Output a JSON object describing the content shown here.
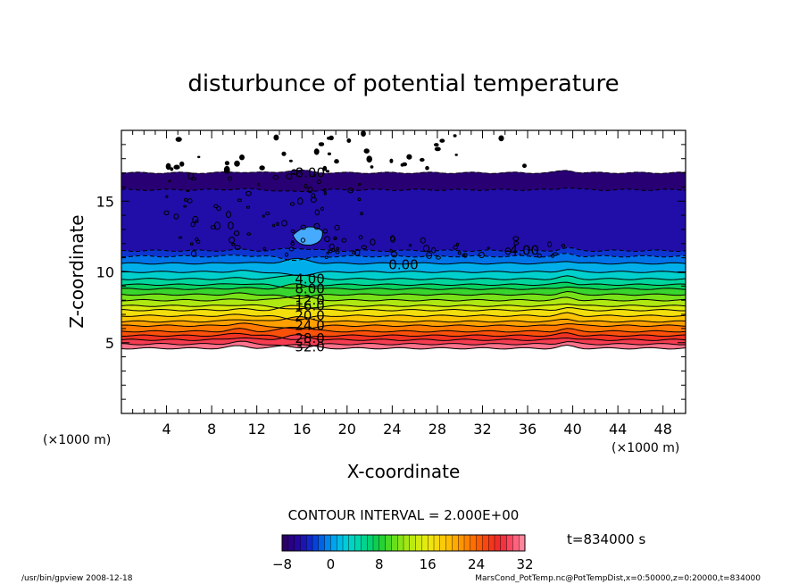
{
  "chart_data": {
    "type": "contour",
    "title": "disturbunce of potential temperature",
    "xlabel": "X-coordinate",
    "ylabel": "Z-coordinate",
    "x_unit_left": "(×1000 m)",
    "x_unit_right": "(×1000 m)",
    "xlim": [
      0,
      50
    ],
    "ylim": [
      0,
      20
    ],
    "x_ticks": [
      4,
      8,
      12,
      16,
      20,
      24,
      28,
      32,
      36,
      40,
      44,
      48
    ],
    "y_ticks": [
      5,
      10,
      15
    ],
    "contour_interval_text": "CONTOUR INTERVAL = 2.000E+00",
    "time_text": "t=834000 s",
    "colorbar": {
      "min": -8,
      "max": 32,
      "ticks": [
        -8,
        0,
        8,
        16,
        24,
        32
      ]
    },
    "contour_labels": [
      {
        "text": "-8.00",
        "x": 16.5,
        "z": 17.0
      },
      {
        "text": "-4.00",
        "x": 35.5,
        "z": 11.5
      },
      {
        "text": "0.00",
        "x": 25.0,
        "z": 10.5
      },
      {
        "text": "4.00",
        "x": 16.7,
        "z": 9.5
      },
      {
        "text": "8.00",
        "x": 16.7,
        "z": 8.8
      },
      {
        "text": "12.0",
        "x": 16.7,
        "z": 8.0
      },
      {
        "text": "16.0",
        "x": 16.7,
        "z": 7.6
      },
      {
        "text": "20.0",
        "x": 16.7,
        "z": 6.9
      },
      {
        "text": "24.0",
        "x": 16.7,
        "z": 6.2
      },
      {
        "text": "28.0",
        "x": 16.7,
        "z": 5.3
      },
      {
        "text": "32.0",
        "x": 16.7,
        "z": 4.7
      }
    ],
    "level_heights": [
      {
        "value": -8,
        "z": 17.0
      },
      {
        "value": -6,
        "z": 15.8
      },
      {
        "value": -4,
        "z": 11.5
      },
      {
        "value": -2,
        "z": 11.1
      },
      {
        "value": 0,
        "z": 10.6
      },
      {
        "value": 2,
        "z": 10.0
      },
      {
        "value": 4,
        "z": 9.5
      },
      {
        "value": 6,
        "z": 9.1
      },
      {
        "value": 8,
        "z": 8.8
      },
      {
        "value": 10,
        "z": 8.4
      },
      {
        "value": 12,
        "z": 8.0
      },
      {
        "value": 14,
        "z": 7.6
      },
      {
        "value": 16,
        "z": 7.3
      },
      {
        "value": 18,
        "z": 6.9
      },
      {
        "value": 20,
        "z": 6.5
      },
      {
        "value": 22,
        "z": 6.2
      },
      {
        "value": 24,
        "z": 5.8
      },
      {
        "value": 26,
        "z": 5.5
      },
      {
        "value": 28,
        "z": 5.2
      },
      {
        "value": 30,
        "z": 4.9
      },
      {
        "value": 32,
        "z": 4.6
      }
    ]
  },
  "footer": {
    "left": "/usr/bin/gpview   2008-12-18",
    "right": "MarsCond_PotTemp.nc@PotTempDist,x=0:50000,z=0:20000,t=834000"
  },
  "colors": {
    "frame": "#000000",
    "background": "#ffffff"
  }
}
